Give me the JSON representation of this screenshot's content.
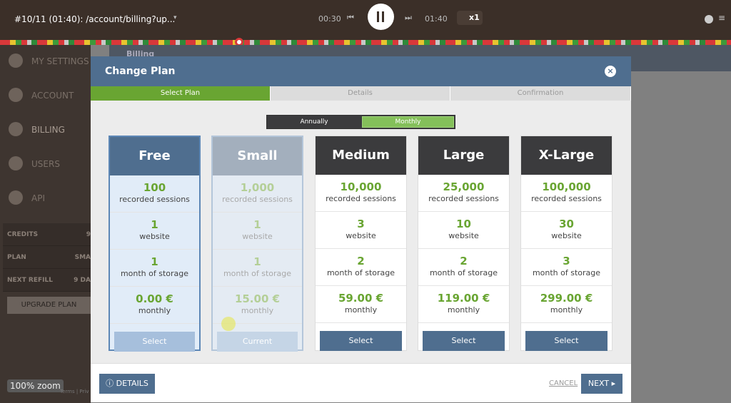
{
  "player": {
    "title": "#10/11 (01:40): /account/billing?up...",
    "time_start": "00:30",
    "time_end": "01:40",
    "speed": "x1"
  },
  "sidebar": {
    "menu": [
      "MY SETTINGS",
      "ACCOUNT",
      "BILLING",
      "USERS",
      "API"
    ],
    "info": [
      {
        "label": "CREDITS",
        "value": "9"
      },
      {
        "label": "PLAN",
        "value": "SMA"
      },
      {
        "label": "NEXT REFILL",
        "value": "9 DA"
      }
    ],
    "button": "UPGRADE PLAN",
    "footer": "Terms | Priv",
    "zoom": "100% zoom"
  },
  "background": {
    "page_title": "Billing"
  },
  "modal": {
    "title": "Change Plan",
    "steps": [
      "Select Plan",
      "Details",
      "Confirmation"
    ],
    "billing_toggle": [
      "Annually",
      "Monthly"
    ],
    "plans": [
      {
        "name": "Free",
        "sessions": "100",
        "sessions_label": "recorded sessions",
        "websites": "1",
        "websites_label": "website",
        "storage": "1",
        "storage_label": "month of storage",
        "price": "0.00 €",
        "price_label": "monthly",
        "button": "Select"
      },
      {
        "name": "Small",
        "sessions": "1,000",
        "sessions_label": "recorded sessions",
        "websites": "1",
        "websites_label": "website",
        "storage": "1",
        "storage_label": "month of storage",
        "price": "15.00 €",
        "price_label": "monthly",
        "button": "Current"
      },
      {
        "name": "Medium",
        "sessions": "10,000",
        "sessions_label": "recorded sessions",
        "websites": "3",
        "websites_label": "website",
        "storage": "2",
        "storage_label": "month of storage",
        "price": "59.00 €",
        "price_label": "monthly",
        "button": "Select"
      },
      {
        "name": "Large",
        "sessions": "25,000",
        "sessions_label": "recorded sessions",
        "websites": "10",
        "websites_label": "website",
        "storage": "2",
        "storage_label": "month of storage",
        "price": "119.00 €",
        "price_label": "monthly",
        "button": "Select"
      },
      {
        "name": "X-Large",
        "sessions": "100,000",
        "sessions_label": "recorded sessions",
        "websites": "30",
        "websites_label": "website",
        "storage": "3",
        "storage_label": "month of storage",
        "price": "299.00 €",
        "price_label": "monthly",
        "button": "Select"
      }
    ],
    "footer": {
      "details": "DETAILS",
      "cancel": "CANCEL",
      "next": "NEXT"
    }
  }
}
